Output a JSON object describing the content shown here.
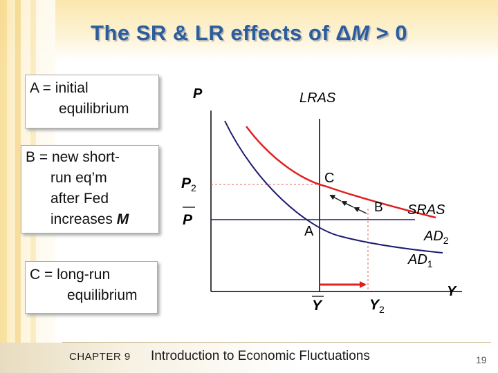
{
  "title": {
    "prefix": "The SR & LR effects of ",
    "delta": "Δ",
    "var": "M",
    "suffix": " > 0"
  },
  "notes": {
    "a": {
      "line1": "A = initial",
      "line2": "equilibrium"
    },
    "b": {
      "line1": "B = new short-",
      "line2": "run eq’m",
      "line3": "after Fed",
      "line4_prefix": "increases ",
      "line4_var": "M"
    },
    "c": {
      "line1": "C = long-run",
      "line2": "equilibrium"
    }
  },
  "diagram": {
    "y_axis_label": "P",
    "x_axis_label": "Y",
    "p2_label": "P",
    "p2_sub": "2",
    "pbar_label": "P",
    "ybar_label": "Y",
    "y2_label": "Y",
    "y2_sub": "2",
    "lras_label": "LRAS",
    "sras_label": "SRAS",
    "ad1_label": "AD",
    "ad1_sub": "1",
    "ad2_label": "AD",
    "ad2_sub": "2",
    "point_a": "A",
    "point_b": "B",
    "point_c": "C",
    "colors": {
      "ad1": "#1a1a6e",
      "ad2": "#e02020",
      "arrow": "#e02020",
      "axis": "#000000",
      "dash": "#e06060",
      "title": "#2b5c9b"
    }
  },
  "footer": {
    "chapter": "CHAPTER 9",
    "title": "Introduction to Economic Fluctuations",
    "page": "19"
  }
}
